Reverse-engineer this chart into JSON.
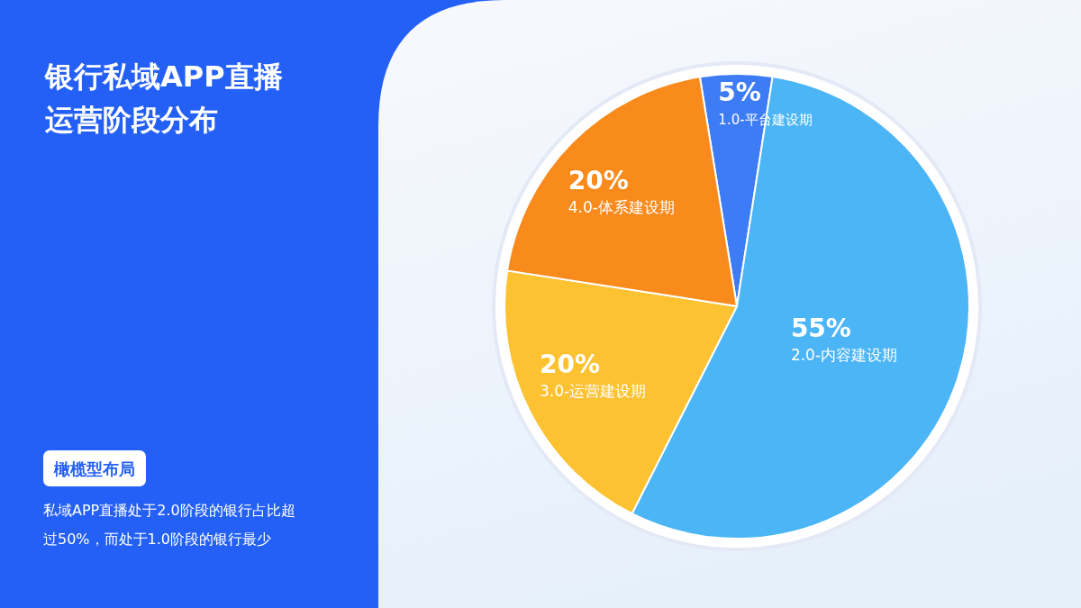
{
  "chart_data": {
    "type": "pie",
    "title": "银行私域APP直播运营阶段分布",
    "subtitle": "橄榄型布局",
    "annotations": [
      "私域APP直播处于2.0阶段的银行占比超过50%，而处于1.0阶段的银行最少"
    ],
    "categories": [
      "1.0-平台建设期",
      "2.0-内容建设期",
      "3.0-运营建设期",
      "4.0-体系建设期"
    ],
    "values": [
      5,
      55,
      20,
      20
    ],
    "colors": [
      "#3d7cf5",
      "#4bb5f5",
      "#fdc232",
      "#f98a1c"
    ],
    "value_labels": [
      "5%",
      "55%",
      "20%",
      "20%"
    ]
  }
}
